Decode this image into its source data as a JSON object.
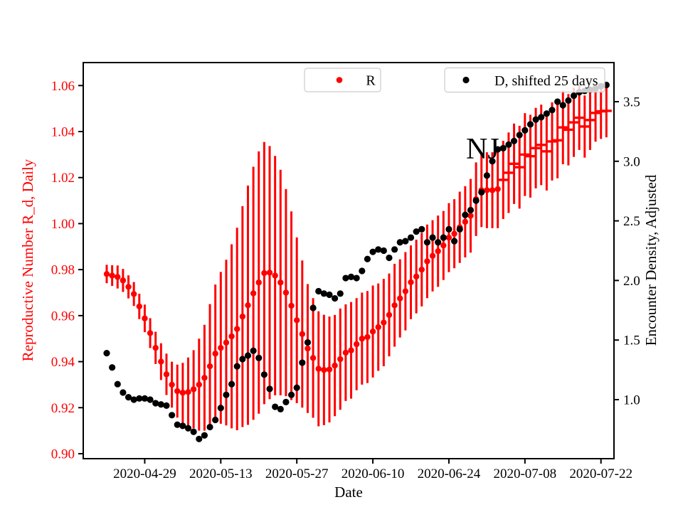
{
  "figure": {
    "background": "#ffffff"
  },
  "chart_data": {
    "type": "scatter",
    "title": "",
    "xlabel": "Date",
    "ylabel_left": "Reproductive Number R_d, Daily",
    "ylabel_right": "Encounter Density, Adjusted",
    "grid": false,
    "annotation": {
      "text": "NJ"
    },
    "colors": {
      "r_series": "#ff0000",
      "d_series": "#000000",
      "axes": "#000000",
      "left_axis_text": "#ff0000",
      "legend_edge": "#cccccc"
    },
    "ylim_left": [
      0.9,
      1.06
    ],
    "yticks_left": [
      0.9,
      0.92,
      0.94,
      0.96,
      0.98,
      1.0,
      1.02,
      1.04,
      1.06
    ],
    "ylim_right": [
      1.0,
      3.5
    ],
    "yticks_right": [
      1.0,
      1.5,
      2.0,
      2.5,
      3.0,
      3.5
    ],
    "x_tick_indices": [
      7,
      21,
      35,
      49,
      63,
      77,
      91
    ],
    "x_tick_labels": [
      "2020-04-29",
      "2020-05-13",
      "2020-05-27",
      "2020-06-10",
      "2020-06-24",
      "2020-07-08",
      "2020-07-22"
    ],
    "dates": [
      "2020-04-22",
      "2020-04-23",
      "2020-04-24",
      "2020-04-25",
      "2020-04-26",
      "2020-04-27",
      "2020-04-28",
      "2020-04-29",
      "2020-04-30",
      "2020-05-01",
      "2020-05-02",
      "2020-05-03",
      "2020-05-04",
      "2020-05-05",
      "2020-05-06",
      "2020-05-07",
      "2020-05-08",
      "2020-05-09",
      "2020-05-10",
      "2020-05-11",
      "2020-05-12",
      "2020-05-13",
      "2020-05-14",
      "2020-05-15",
      "2020-05-16",
      "2020-05-17",
      "2020-05-18",
      "2020-05-19",
      "2020-05-20",
      "2020-05-21",
      "2020-05-22",
      "2020-05-23",
      "2020-05-24",
      "2020-05-25",
      "2020-05-26",
      "2020-05-27",
      "2020-05-28",
      "2020-05-29",
      "2020-05-30",
      "2020-05-31",
      "2020-06-01",
      "2020-06-02",
      "2020-06-03",
      "2020-06-04",
      "2020-06-05",
      "2020-06-06",
      "2020-06-07",
      "2020-06-08",
      "2020-06-09",
      "2020-06-10",
      "2020-06-11",
      "2020-06-12",
      "2020-06-13",
      "2020-06-14",
      "2020-06-15",
      "2020-06-16",
      "2020-06-17",
      "2020-06-18",
      "2020-06-19",
      "2020-06-20",
      "2020-06-21",
      "2020-06-22",
      "2020-06-23",
      "2020-06-24",
      "2020-06-25",
      "2020-06-26",
      "2020-06-27",
      "2020-06-28",
      "2020-06-29",
      "2020-06-30",
      "2020-07-01",
      "2020-07-02",
      "2020-07-03",
      "2020-07-04",
      "2020-07-05",
      "2020-07-06",
      "2020-07-07",
      "2020-07-08",
      "2020-07-09",
      "2020-07-10",
      "2020-07-11",
      "2020-07-12",
      "2020-07-13",
      "2020-07-14",
      "2020-07-15",
      "2020-07-16",
      "2020-07-17",
      "2020-07-18",
      "2020-07-19",
      "2020-07-20",
      "2020-07-21",
      "2020-07-22",
      "2020-07-23"
    ],
    "series": [
      {
        "name": "R",
        "axis": "left",
        "color": "#ff0000",
        "marker": "dot-then-dash",
        "dash_marker_from_index": 73,
        "values": [
          0.9781,
          0.9774,
          0.9768,
          0.9753,
          0.9725,
          0.9694,
          0.964,
          0.9588,
          0.9524,
          0.946,
          0.94,
          0.9345,
          0.93,
          0.9272,
          0.9265,
          0.9268,
          0.928,
          0.93,
          0.933,
          0.938,
          0.9435,
          0.946,
          0.9483,
          0.951,
          0.9542,
          0.9596,
          0.9645,
          0.9697,
          0.9744,
          0.9785,
          0.9787,
          0.9774,
          0.9744,
          0.97,
          0.9643,
          0.958,
          0.952,
          0.9457,
          0.9416,
          0.9369,
          0.9364,
          0.9366,
          0.9383,
          0.9411,
          0.9439,
          0.9449,
          0.9476,
          0.95,
          0.9507,
          0.9531,
          0.955,
          0.957,
          0.9603,
          0.9645,
          0.9675,
          0.9706,
          0.9745,
          0.977,
          0.98,
          0.9836,
          0.986,
          0.988,
          0.9905,
          0.9939,
          0.9956,
          0.9984,
          1.0008,
          1.0034,
          1.0106,
          1.0145,
          1.0145,
          1.0145,
          1.015,
          1.019,
          1.0221,
          1.026,
          1.0245,
          1.03,
          1.0293,
          1.0328,
          1.0342,
          1.0314,
          1.0357,
          1.0362,
          1.0418,
          1.0408,
          1.044,
          1.046,
          1.0422,
          1.045,
          1.0481,
          1.0488,
          1.049
        ],
        "errors": [
          0.004,
          0.0045,
          0.005,
          0.005,
          0.005,
          0.0052,
          0.0055,
          0.006,
          0.0065,
          0.007,
          0.008,
          0.009,
          0.01,
          0.0115,
          0.013,
          0.015,
          0.017,
          0.02,
          0.023,
          0.027,
          0.03,
          0.033,
          0.036,
          0.04,
          0.044,
          0.048,
          0.052,
          0.055,
          0.057,
          0.057,
          0.055,
          0.052,
          0.049,
          0.045,
          0.041,
          0.036,
          0.032,
          0.028,
          0.026,
          0.025,
          0.024,
          0.023,
          0.022,
          0.022,
          0.021,
          0.021,
          0.02,
          0.02,
          0.02,
          0.02,
          0.019,
          0.019,
          0.018,
          0.018,
          0.017,
          0.017,
          0.016,
          0.016,
          0.016,
          0.016,
          0.0155,
          0.0155,
          0.015,
          0.015,
          0.015,
          0.0155,
          0.0155,
          0.016,
          0.016,
          0.016,
          0.0165,
          0.0165,
          0.017,
          0.017,
          0.0175,
          0.0175,
          0.018,
          0.018,
          0.018,
          0.0175,
          0.0175,
          0.017,
          0.017,
          0.0165,
          0.016,
          0.0155,
          0.015,
          0.014,
          0.0135,
          0.013,
          0.0125,
          0.012,
          0.0115
        ]
      },
      {
        "name": "D, shifted 25 days",
        "axis": "right",
        "color": "#000000",
        "marker": "dot",
        "values": [
          1.39,
          1.27,
          1.13,
          1.06,
          1.02,
          1.0,
          1.01,
          1.01,
          1.0,
          0.97,
          0.96,
          0.95,
          0.87,
          0.79,
          0.78,
          0.76,
          0.73,
          0.67,
          0.7,
          0.77,
          0.83,
          0.93,
          1.04,
          1.13,
          1.28,
          1.34,
          1.37,
          1.41,
          1.35,
          1.21,
          1.09,
          0.94,
          0.92,
          0.98,
          1.04,
          1.1,
          1.31,
          1.48,
          1.77,
          1.91,
          1.89,
          1.88,
          1.85,
          1.89,
          2.02,
          2.03,
          2.02,
          2.08,
          2.18,
          2.24,
          2.26,
          2.25,
          2.19,
          2.26,
          2.32,
          2.33,
          2.36,
          2.41,
          2.43,
          2.32,
          2.36,
          2.32,
          2.36,
          2.43,
          2.33,
          2.43,
          2.55,
          2.59,
          2.67,
          2.74,
          2.88,
          3.0,
          3.1,
          3.11,
          3.14,
          3.17,
          3.22,
          3.26,
          3.31,
          3.35,
          3.37,
          3.4,
          3.43,
          3.5,
          3.47,
          3.51,
          3.55,
          3.58,
          3.59,
          3.6,
          3.61,
          3.63,
          3.64
        ]
      }
    ],
    "legends": [
      {
        "label": "R"
      },
      {
        "label": "D, shifted 25 days"
      }
    ]
  }
}
